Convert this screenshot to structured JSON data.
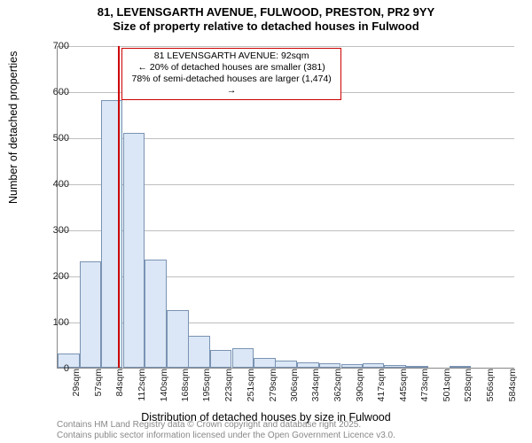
{
  "title": {
    "line1": "81, LEVENSGARTH AVENUE, FULWOOD, PRESTON, PR2 9YY",
    "line2": "Size of property relative to detached houses in Fulwood"
  },
  "chart": {
    "type": "histogram",
    "ylabel": "Number of detached properties",
    "xlabel": "Distribution of detached houses by size in Fulwood",
    "ylim": [
      0,
      700
    ],
    "ytick_step": 100,
    "yticks": [
      0,
      100,
      200,
      300,
      400,
      500,
      600,
      700
    ],
    "xticks": [
      "29sqm",
      "57sqm",
      "84sqm",
      "112sqm",
      "140sqm",
      "168sqm",
      "195sqm",
      "223sqm",
      "251sqm",
      "279sqm",
      "306sqm",
      "334sqm",
      "362sqm",
      "390sqm",
      "417sqm",
      "445sqm",
      "473sqm",
      "501sqm",
      "528sqm",
      "556sqm",
      "584sqm"
    ],
    "bar_centers_sqm": [
      29,
      57,
      84,
      112,
      140,
      168,
      195,
      223,
      251,
      279,
      306,
      334,
      362,
      390,
      417,
      445,
      473,
      501,
      528,
      556,
      584
    ],
    "values": [
      30,
      230,
      580,
      510,
      235,
      125,
      70,
      38,
      42,
      22,
      15,
      12,
      10,
      8,
      10,
      5,
      2,
      0,
      2,
      0,
      0
    ],
    "bar_fill": "#dbe7f6",
    "bar_border": "#7a93b3",
    "grid_color": "#bfbfbf",
    "axis_color": "#888888",
    "background": "#ffffff",
    "x_domain_sqm": [
      15,
      598
    ],
    "bar_width_sqm": 27.7,
    "marker": {
      "x_sqm": 92,
      "color": "#cc0000"
    },
    "annotation": {
      "line1": "81 LEVENSGARTH AVENUE: 92sqm",
      "line2": "← 20% of detached houses are smaller (381)",
      "line3": "78% of semi-detached houses are larger (1,474) →",
      "border_color": "#cc0000",
      "background": "#ffffff",
      "fontsize": 10.5
    },
    "label_fontsize": 12.5,
    "tick_fontsize": 11,
    "title_fontsize": 13
  },
  "footer": {
    "line1": "Contains HM Land Registry data © Crown copyright and database right 2025.",
    "line2": "Contains public sector information licensed under the Open Government Licence v3.0."
  }
}
